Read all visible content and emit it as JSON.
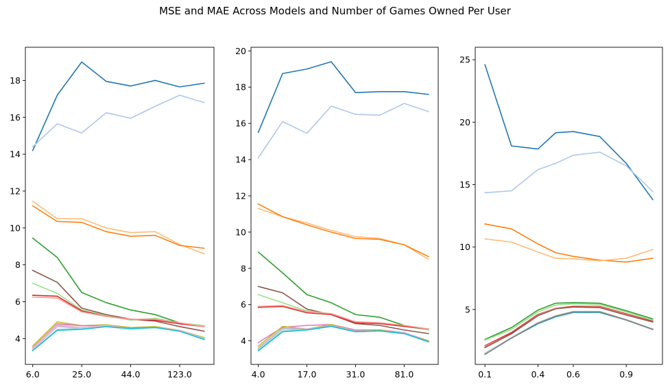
{
  "title": "MSE and MAE Across Models and Number of Games Owned Per User",
  "chart_data": [
    {
      "type": "line",
      "x": [
        0,
        1,
        2,
        3,
        4,
        5,
        6,
        7
      ],
      "xticks": [
        0,
        2,
        4,
        6
      ],
      "xtick_labels": [
        "6.0",
        "25.0",
        "44.0",
        "123.0"
      ],
      "xlim": [
        -0.3,
        7.4
      ],
      "ylim": [
        2.6,
        19.8
      ],
      "yticks": [
        4,
        6,
        8,
        10,
        12,
        14,
        16,
        18
      ],
      "ytick_labels": [
        "4",
        "6",
        "8",
        "10",
        "12",
        "14",
        "16",
        "18"
      ],
      "series": [
        {
          "color": "#1f77b4",
          "values": [
            14.2,
            17.2,
            19.0,
            17.95,
            17.7,
            18.0,
            17.65,
            17.85
          ]
        },
        {
          "color": "#aec7e8",
          "values": [
            14.4,
            15.65,
            15.15,
            16.25,
            15.95,
            16.6,
            17.2,
            16.8
          ]
        },
        {
          "color": "#ffbb78",
          "values": [
            11.45,
            10.5,
            10.5,
            10.0,
            9.75,
            9.8,
            9.1,
            8.6
          ]
        },
        {
          "color": "#ff7f0e",
          "values": [
            11.2,
            10.35,
            10.3,
            9.8,
            9.55,
            9.6,
            9.05,
            8.9
          ]
        },
        {
          "color": "#2ca02c",
          "values": [
            9.45,
            8.4,
            6.5,
            5.95,
            5.55,
            5.3,
            4.85,
            4.65
          ]
        },
        {
          "color": "#8c564b",
          "values": [
            7.7,
            7.05,
            5.65,
            5.3,
            5.05,
            4.95,
            4.65,
            4.4
          ]
        },
        {
          "color": "#98df8a",
          "values": [
            7.0,
            6.45,
            5.55,
            5.25,
            5.0,
            5.1,
            4.85,
            4.7
          ]
        },
        {
          "color": "#d62728",
          "values": [
            6.35,
            6.3,
            5.5,
            5.2,
            5.05,
            5.0,
            4.8,
            4.65
          ]
        },
        {
          "color": "#ff9896",
          "values": [
            6.25,
            6.2,
            5.45,
            5.2,
            5.05,
            5.05,
            4.85,
            4.65
          ]
        },
        {
          "color": "#bcbd22",
          "values": [
            3.6,
            4.9,
            4.7,
            4.75,
            4.6,
            4.65,
            4.45,
            4.05
          ]
        },
        {
          "color": "#e377c2",
          "values": [
            3.5,
            4.8,
            4.7,
            4.7,
            4.55,
            4.6,
            4.45,
            4.0
          ]
        },
        {
          "color": "#c5b0d5",
          "values": [
            3.45,
            4.7,
            4.6,
            4.7,
            4.55,
            4.6,
            4.4,
            4.0
          ]
        },
        {
          "color": "#c7c7c7",
          "values": [
            3.4,
            4.65,
            4.55,
            4.65,
            4.5,
            4.6,
            4.4,
            3.95
          ]
        },
        {
          "color": "#f7b6d2",
          "values": [
            3.45,
            4.75,
            4.6,
            4.7,
            4.55,
            4.6,
            4.45,
            4.0
          ]
        },
        {
          "color": "#9edae5",
          "values": [
            3.35,
            4.5,
            4.55,
            4.65,
            4.5,
            4.6,
            4.4,
            4.0
          ]
        },
        {
          "color": "#17becf",
          "values": [
            3.35,
            4.45,
            4.5,
            4.65,
            4.55,
            4.6,
            4.4,
            3.95
          ]
        }
      ]
    },
    {
      "type": "line",
      "x": [
        0,
        1,
        2,
        3,
        4,
        5,
        6,
        7
      ],
      "xticks": [
        0,
        2,
        4,
        6
      ],
      "xtick_labels": [
        "4.0",
        "17.0",
        "31.0",
        "81.0"
      ],
      "xlim": [
        -0.3,
        7.4
      ],
      "ylim": [
        2.7,
        20.2
      ],
      "yticks": [
        4,
        6,
        8,
        10,
        12,
        14,
        16,
        18,
        20
      ],
      "ytick_labels": [
        "4",
        "6",
        "8",
        "10",
        "12",
        "14",
        "16",
        "18",
        "20"
      ],
      "series": [
        {
          "color": "#1f77b4",
          "values": [
            15.5,
            18.75,
            19.0,
            19.4,
            17.7,
            17.75,
            17.75,
            17.6
          ]
        },
        {
          "color": "#aec7e8",
          "values": [
            14.1,
            16.1,
            15.45,
            16.95,
            16.5,
            16.45,
            17.1,
            16.65
          ]
        },
        {
          "color": "#ffbb78",
          "values": [
            11.3,
            10.85,
            10.5,
            10.1,
            9.75,
            9.65,
            9.3,
            8.5
          ]
        },
        {
          "color": "#ff7f0e",
          "values": [
            11.55,
            10.85,
            10.4,
            10.0,
            9.65,
            9.6,
            9.3,
            8.65
          ]
        },
        {
          "color": "#2ca02c",
          "values": [
            8.9,
            7.75,
            6.55,
            6.1,
            5.45,
            5.3,
            4.85,
            4.65
          ]
        },
        {
          "color": "#8c564b",
          "values": [
            7.0,
            6.65,
            5.75,
            5.45,
            4.95,
            4.85,
            4.6,
            4.4
          ]
        },
        {
          "color": "#98df8a",
          "values": [
            6.55,
            6.1,
            5.65,
            5.5,
            5.0,
            4.95,
            4.8,
            4.6
          ]
        },
        {
          "color": "#d62728",
          "values": [
            5.85,
            5.9,
            5.55,
            5.45,
            5.0,
            4.95,
            4.8,
            4.65
          ]
        },
        {
          "color": "#ff9896",
          "values": [
            5.9,
            5.95,
            5.6,
            5.5,
            5.05,
            5.0,
            4.85,
            4.65
          ]
        },
        {
          "color": "#e377c2",
          "values": [
            3.9,
            4.75,
            4.85,
            4.9,
            4.6,
            4.6,
            4.45,
            4.0
          ]
        },
        {
          "color": "#bcbd22",
          "values": [
            3.7,
            4.8,
            4.65,
            4.9,
            4.55,
            4.6,
            4.4,
            4.0
          ]
        },
        {
          "color": "#c5b0d5",
          "values": [
            3.6,
            4.7,
            4.65,
            4.85,
            4.55,
            4.55,
            4.45,
            3.95
          ]
        },
        {
          "color": "#c7c7c7",
          "values": [
            3.55,
            4.65,
            4.6,
            4.8,
            4.5,
            4.55,
            4.4,
            3.95
          ]
        },
        {
          "color": "#9edae5",
          "values": [
            3.5,
            4.55,
            4.6,
            4.8,
            4.5,
            4.55,
            4.4,
            3.95
          ]
        },
        {
          "color": "#17becf",
          "values": [
            3.45,
            4.5,
            4.6,
            4.8,
            4.5,
            4.55,
            4.4,
            3.95
          ]
        }
      ]
    },
    {
      "type": "line",
      "x": [
        0.1,
        0.25,
        0.4,
        0.5,
        0.6,
        0.75,
        0.9,
        1.05
      ],
      "xticks": [
        0.1,
        0.4,
        0.6,
        0.9
      ],
      "xtick_labels": [
        "0.1",
        "0.4",
        "0.6",
        "0.9"
      ],
      "xlim": [
        0.045,
        1.105
      ],
      "ylim": [
        0.6,
        26.0
      ],
      "yticks": [
        5,
        10,
        15,
        20,
        25
      ],
      "ytick_labels": [
        "5",
        "10",
        "15",
        "20",
        "25"
      ],
      "series": [
        {
          "color": "#1f77b4",
          "values": [
            24.6,
            18.1,
            17.85,
            19.15,
            19.25,
            18.85,
            16.7,
            13.8
          ]
        },
        {
          "color": "#aec7e8",
          "values": [
            14.35,
            14.5,
            16.2,
            16.7,
            17.35,
            17.6,
            16.5,
            14.45
          ]
        },
        {
          "color": "#ff7f0e",
          "values": [
            11.85,
            11.45,
            10.25,
            9.55,
            9.25,
            8.95,
            8.8,
            9.1
          ]
        },
        {
          "color": "#ffbb78",
          "values": [
            10.65,
            10.4,
            9.6,
            9.1,
            9.05,
            8.9,
            9.1,
            9.8
          ]
        },
        {
          "color": "#2ca02c",
          "values": [
            2.6,
            3.55,
            4.95,
            5.5,
            5.55,
            5.5,
            4.9,
            4.25
          ]
        },
        {
          "color": "#98df8a",
          "values": [
            2.55,
            3.4,
            4.8,
            5.35,
            5.45,
            5.4,
            4.8,
            4.15
          ]
        },
        {
          "color": "#d62728",
          "values": [
            2.1,
            3.15,
            4.6,
            5.1,
            5.25,
            5.25,
            4.65,
            4.05
          ]
        },
        {
          "color": "#ff9896",
          "values": [
            2.05,
            3.05,
            4.55,
            5.1,
            5.2,
            5.2,
            4.6,
            4.0
          ]
        },
        {
          "color": "#8c564b",
          "values": [
            1.95,
            3.05,
            4.5,
            5.05,
            5.2,
            5.15,
            4.55,
            4.0
          ]
        },
        {
          "color": "#9edae5",
          "values": [
            1.5,
            2.75,
            3.9,
            4.45,
            4.8,
            4.8,
            4.15,
            3.4
          ]
        },
        {
          "color": "#17becf",
          "values": [
            1.45,
            2.7,
            3.85,
            4.4,
            4.75,
            4.75,
            4.15,
            3.4
          ]
        },
        {
          "color": "#c7c7c7",
          "values": [
            1.45,
            2.75,
            3.95,
            4.5,
            4.85,
            4.85,
            4.2,
            3.45
          ]
        },
        {
          "color": "#7f7f7f",
          "values": [
            1.4,
            2.7,
            3.9,
            4.45,
            4.8,
            4.8,
            4.15,
            3.4
          ]
        }
      ]
    }
  ]
}
